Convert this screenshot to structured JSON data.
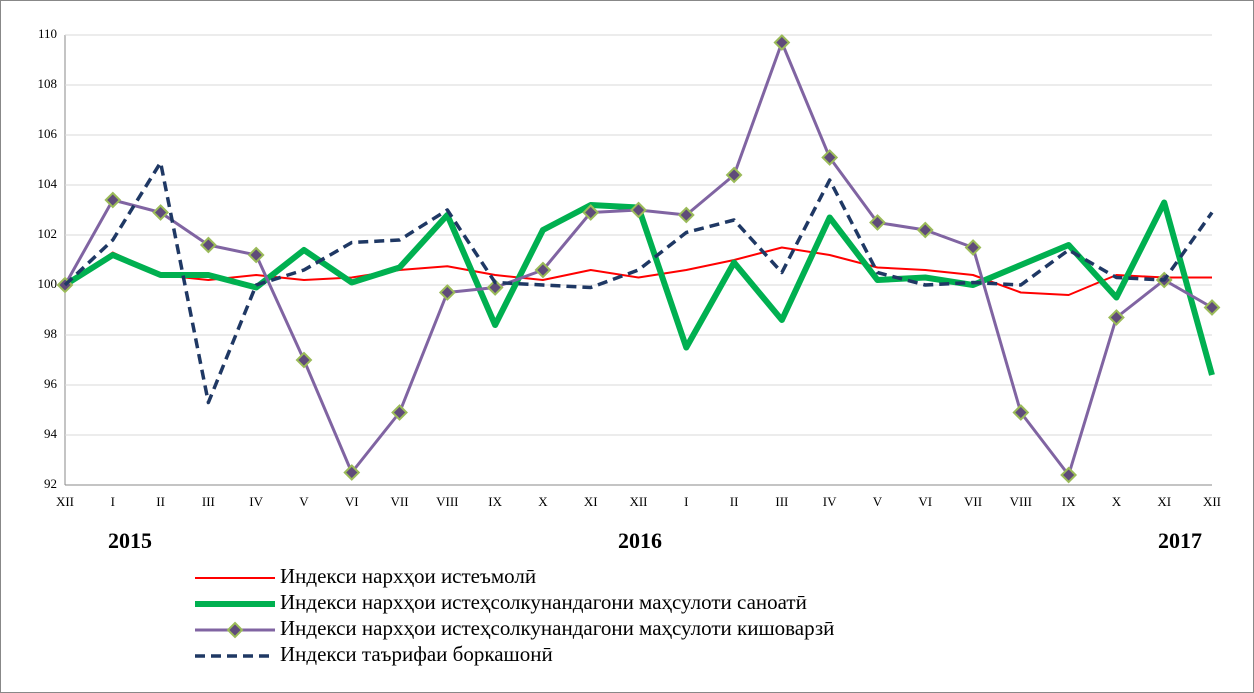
{
  "chart_data": {
    "type": "line",
    "categories": [
      "XII",
      "I",
      "II",
      "III",
      "IV",
      "V",
      "VI",
      "VII",
      "VIII",
      "IX",
      "X",
      "XI",
      "XII",
      "I",
      "II",
      "III",
      "IV",
      "V",
      "VI",
      "VII",
      "VIII",
      "IX",
      "X",
      "XI",
      "XII"
    ],
    "annotations": [
      "2015",
      "2016",
      "2017"
    ],
    "ylim": [
      92,
      110
    ],
    "yticks": [
      92,
      94,
      96,
      98,
      100,
      102,
      104,
      106,
      108,
      110
    ],
    "grid": true,
    "legend": "bottom",
    "series": [
      {
        "name": "Индекси нархҳои истеъмолӣ",
        "color": "#ff0000",
        "style": "thin",
        "values": [
          100,
          101.3,
          100.4,
          100.2,
          100.4,
          100.2,
          100.3,
          100.6,
          100.75,
          100.4,
          100.2,
          100.6,
          100.3,
          100.6,
          101.0,
          101.5,
          101.2,
          100.7,
          100.6,
          100.4,
          99.7,
          99.6,
          100.4,
          100.3,
          100.3
        ]
      },
      {
        "name": "Индекси нархҳои истеҳсолкунандагони маҳсулоти саноатӣ",
        "color": "#00b050",
        "style": "thick",
        "values": [
          100,
          101.2,
          100.4,
          100.4,
          99.9,
          101.4,
          100.1,
          100.7,
          102.8,
          98.4,
          102.2,
          103.2,
          103.1,
          97.5,
          100.9,
          98.6,
          102.7,
          100.2,
          100.3,
          100.0,
          100.8,
          101.6,
          99.5,
          103.3,
          96.4
        ]
      },
      {
        "name": "Индекси нархҳои истеҳсолкунандагони маҳсулоти кишоварзӣ",
        "color": "#8064a2",
        "style": "marker",
        "values": [
          100,
          103.4,
          102.9,
          101.6,
          101.2,
          97.0,
          92.5,
          94.9,
          99.7,
          99.9,
          100.6,
          102.9,
          103.0,
          102.8,
          104.4,
          109.7,
          105.1,
          102.5,
          102.2,
          101.5,
          94.9,
          92.4,
          98.7,
          100.2,
          99.1
        ]
      },
      {
        "name": "Индекси таърифаи боркашонӣ",
        "color": "#1f3864",
        "style": "dashed",
        "values": [
          100,
          101.8,
          104.9,
          95.3,
          100.0,
          100.6,
          101.7,
          101.8,
          103.0,
          100.1,
          100.0,
          99.9,
          100.6,
          102.1,
          102.6,
          100.5,
          104.2,
          100.5,
          100.0,
          100.1,
          100.0,
          101.4,
          100.3,
          100.2,
          102.9
        ]
      }
    ]
  }
}
